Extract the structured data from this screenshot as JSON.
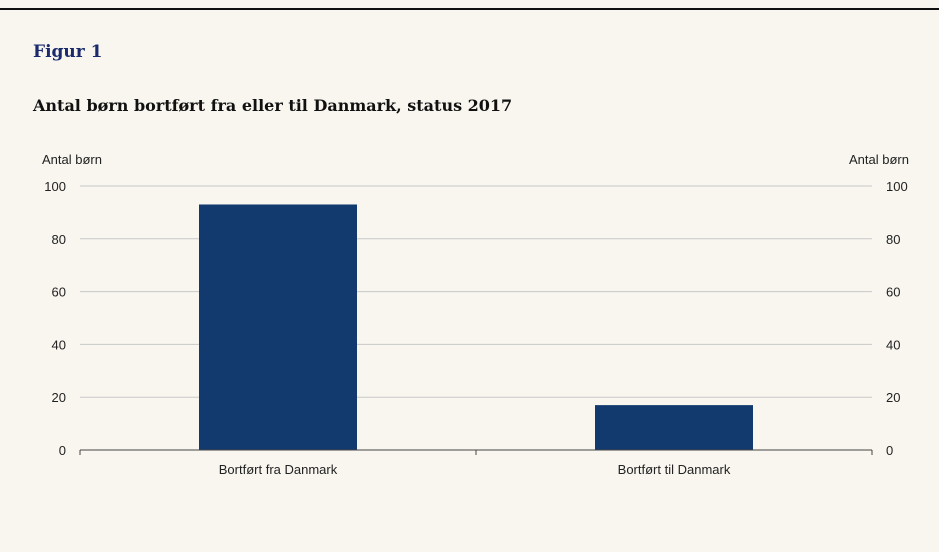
{
  "figure": {
    "label": "Figur 1"
  },
  "chart_data": {
    "type": "bar",
    "title": "Antal børn bortført fra eller til Danmark, status 2017",
    "categories": [
      "Bortført fra Danmark",
      "Bortført til Danmark"
    ],
    "values": [
      93,
      17
    ],
    "ylabel_left": "Antal børn",
    "ylabel_right": "Antal børn",
    "ylim": [
      0,
      100
    ],
    "yticks": [
      0,
      20,
      40,
      60,
      80,
      100
    ],
    "grid": true,
    "bar_color": "#133a6e",
    "grid_color": "#c8c8c8"
  }
}
